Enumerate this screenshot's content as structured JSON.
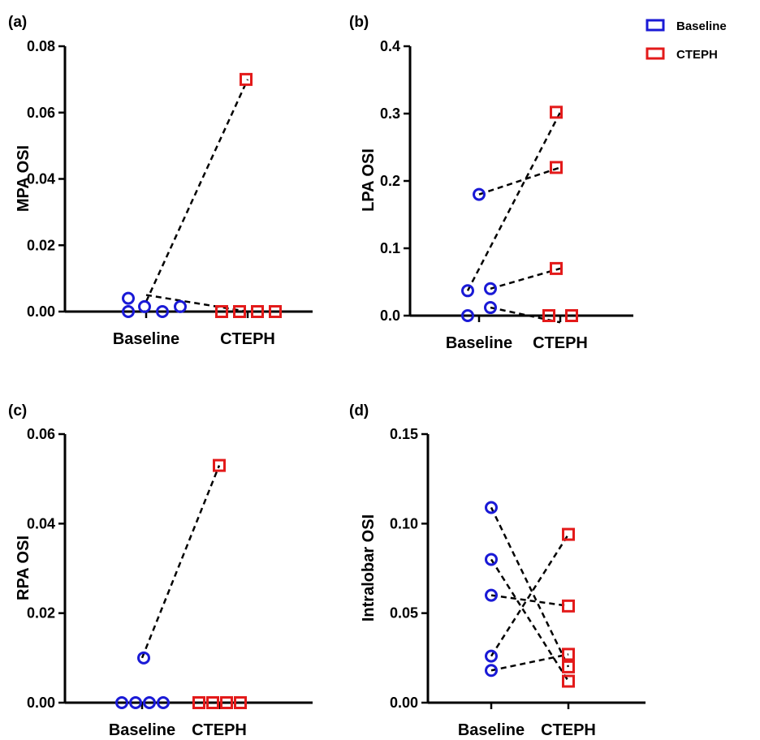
{
  "legend": {
    "entries": [
      {
        "label": "Baseline",
        "marker": "square-open",
        "color": "#1a1ad6"
      },
      {
        "label": "CTEPH",
        "marker": "square-open",
        "color": "#e31a1a"
      }
    ]
  },
  "colors": {
    "baseline": "#1a1ad6",
    "cteph": "#e31a1a",
    "lines": "#000000"
  },
  "chart_data": [
    {
      "panel": "(a)",
      "type": "scatter",
      "ylabel": "MPA OSI",
      "categories": [
        "Baseline",
        "CTEPH"
      ],
      "ylim": [
        0,
        0.08
      ],
      "yticks": [
        0.0,
        0.02,
        0.04,
        0.06,
        0.08
      ],
      "tick_decimals": 2,
      "series": [
        {
          "name": "Baseline",
          "marker": "circle",
          "x": [
            -0.3,
            -0.3,
            -0.14,
            0.1,
            0.3
          ],
          "values": [
            0.004,
            0.0,
            0.0015,
            0.0,
            0.0015
          ]
        },
        {
          "name": "CTEPH",
          "marker": "square",
          "x": [
            -0.3,
            -0.1,
            0.1,
            0.3,
            -0.1
          ],
          "values": [
            0.0,
            0.0,
            0.0,
            0.0,
            0.07
          ]
        }
      ],
      "connectors": [
        {
          "from": [
            0.0,
            0.005
          ],
          "to": [
            0.0,
            0.0
          ]
        },
        {
          "from": [
            0.0,
            0.003
          ],
          "to": [
            0.0,
            0.07
          ]
        }
      ]
    },
    {
      "panel": "(b)",
      "type": "scatter",
      "ylabel": "LPA OSI",
      "categories": [
        "Baseline",
        "CTEPH"
      ],
      "ylim": [
        0,
        0.4
      ],
      "yticks": [
        0.0,
        0.1,
        0.2,
        0.3,
        0.4
      ],
      "tick_decimals": 1,
      "series": [
        {
          "name": "Baseline",
          "marker": "circle",
          "x": [
            -0.25,
            -0.25,
            0.25,
            0.25,
            0.0
          ],
          "values": [
            0.037,
            0.0,
            0.04,
            0.012,
            0.18
          ]
        },
        {
          "name": "CTEPH",
          "marker": "square",
          "x": [
            -0.25,
            0.25,
            0.0,
            0.0,
            0.0
          ],
          "values": [
            0.0,
            0.0,
            0.07,
            0.22,
            0.302
          ]
        }
      ],
      "connectors": [
        {
          "from": [
            -0.25,
            0.037
          ],
          "to": [
            0.0,
            0.302
          ]
        },
        {
          "from": [
            0.0,
            0.18
          ],
          "to": [
            0.0,
            0.22
          ]
        },
        {
          "from": [
            0.25,
            0.04
          ],
          "to": [
            0.0,
            0.07
          ]
        },
        {
          "from": [
            0.25,
            0.012
          ],
          "to": [
            -0.25,
            -0.01
          ]
        }
      ]
    },
    {
      "panel": "(c)",
      "type": "scatter",
      "ylabel": "RPA OSI",
      "categories": [
        "Baseline",
        "CTEPH"
      ],
      "ylim": [
        0,
        0.06
      ],
      "yticks": [
        0.0,
        0.02,
        0.04,
        0.06
      ],
      "tick_decimals": 2,
      "series": [
        {
          "name": "Baseline",
          "marker": "circle",
          "x": [
            -0.45,
            -0.15,
            0.15,
            0.45,
            0.0
          ],
          "values": [
            0.0,
            0.0,
            0.0,
            0.0,
            0.01
          ]
        },
        {
          "name": "CTEPH",
          "marker": "square",
          "x": [
            -0.45,
            -0.15,
            0.15,
            0.45,
            0.0
          ],
          "values": [
            0.0,
            0.0,
            0.0,
            0.0,
            0.053
          ]
        }
      ],
      "connectors": [
        {
          "from": [
            0.0,
            0.01
          ],
          "to": [
            0.0,
            0.053
          ]
        }
      ]
    },
    {
      "panel": "(d)",
      "type": "scatter",
      "ylabel": "Intralobar OSI",
      "categories": [
        "Baseline",
        "CTEPH"
      ],
      "ylim": [
        0,
        0.15
      ],
      "yticks": [
        0.0,
        0.05,
        0.1,
        0.15
      ],
      "tick_decimals": 2,
      "series": [
        {
          "name": "Baseline",
          "marker": "circle",
          "x": [
            0.0,
            0.0,
            0.0,
            0.0,
            0.0
          ],
          "values": [
            0.109,
            0.08,
            0.06,
            0.026,
            0.018
          ]
        },
        {
          "name": "CTEPH",
          "marker": "square",
          "x": [
            0.0,
            0.0,
            0.0,
            0.0,
            0.0
          ],
          "values": [
            0.094,
            0.054,
            0.027,
            0.02,
            0.012
          ]
        }
      ],
      "connectors": [
        {
          "from": [
            0.0,
            0.109
          ],
          "to": [
            0.0,
            0.02
          ]
        },
        {
          "from": [
            0.0,
            0.08
          ],
          "to": [
            0.0,
            0.012
          ]
        },
        {
          "from": [
            0.0,
            0.06
          ],
          "to": [
            0.0,
            0.054
          ]
        },
        {
          "from": [
            0.0,
            0.026
          ],
          "to": [
            0.0,
            0.094
          ]
        },
        {
          "from": [
            0.0,
            0.018
          ],
          "to": [
            0.0,
            0.027
          ]
        }
      ]
    }
  ]
}
